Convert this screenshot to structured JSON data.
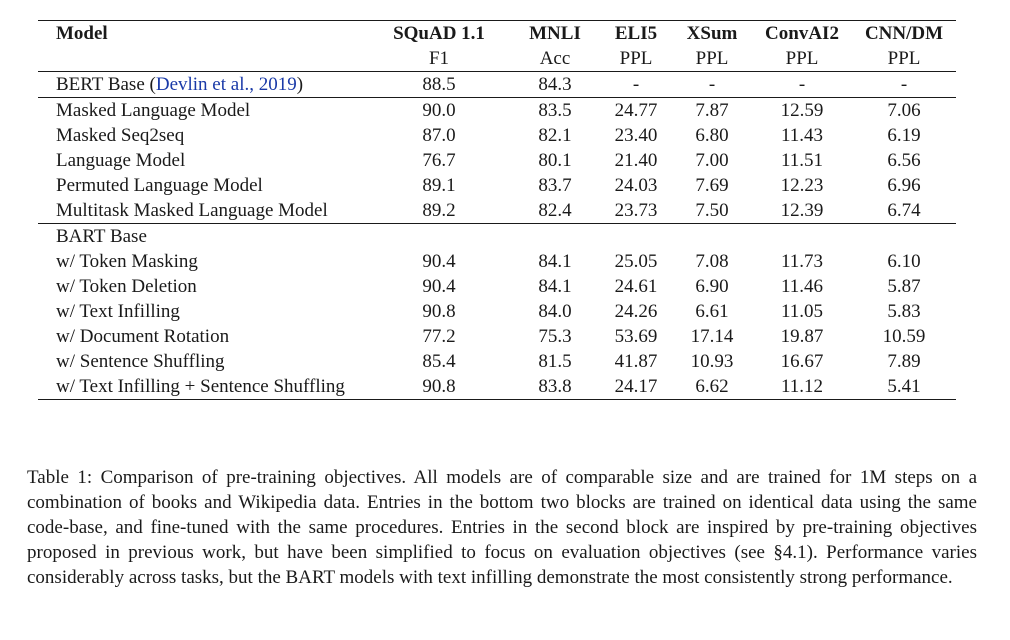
{
  "header": {
    "model_label": "Model",
    "columns": [
      {
        "name": "SQuAD 1.1",
        "metric": "F1"
      },
      {
        "name": "MNLI",
        "metric": "Acc"
      },
      {
        "name": "ELI5",
        "metric": "PPL"
      },
      {
        "name": "XSum",
        "metric": "PPL"
      },
      {
        "name": "ConvAI2",
        "metric": "PPL"
      },
      {
        "name": "CNN/DM",
        "metric": "PPL"
      }
    ]
  },
  "baseline": {
    "model": "BERT Base",
    "citation_open": " (",
    "citation": "Devlin et al., 2019",
    "citation_close": ")",
    "values": [
      "88.5",
      "84.3",
      "-",
      "-",
      "-",
      "-"
    ]
  },
  "block2": [
    {
      "model": "Masked Language Model",
      "values": [
        "90.0",
        "83.5",
        "24.77",
        "7.87",
        "12.59",
        "7.06"
      ]
    },
    {
      "model": "Masked Seq2seq",
      "values": [
        "87.0",
        "82.1",
        "23.40",
        "6.80",
        "11.43",
        "6.19"
      ]
    },
    {
      "model": "Language Model",
      "values": [
        "76.7",
        "80.1",
        "21.40",
        "7.00",
        "11.51",
        "6.56"
      ]
    },
    {
      "model": "Permuted Language Model",
      "values": [
        "89.1",
        "83.7",
        "24.03",
        "7.69",
        "12.23",
        "6.96"
      ]
    },
    {
      "model": "Multitask Masked Language Model",
      "values": [
        "89.2",
        "82.4",
        "23.73",
        "7.50",
        "12.39",
        "6.74"
      ]
    }
  ],
  "block3_title": "BART Base",
  "block3": [
    {
      "model": "w/ Token Masking",
      "values": [
        "90.4",
        "84.1",
        "25.05",
        "7.08",
        "11.73",
        "6.10"
      ]
    },
    {
      "model": "w/ Token Deletion",
      "values": [
        "90.4",
        "84.1",
        "24.61",
        "6.90",
        "11.46",
        "5.87"
      ]
    },
    {
      "model": "w/ Text Infilling",
      "values": [
        "90.8",
        "84.0",
        "24.26",
        "6.61",
        "11.05",
        "5.83"
      ]
    },
    {
      "model": "w/ Document Rotation",
      "values": [
        "77.2",
        "75.3",
        "53.69",
        "17.14",
        "19.87",
        "10.59"
      ]
    },
    {
      "model": "w/ Sentence Shuffling",
      "values": [
        "85.4",
        "81.5",
        "41.87",
        "10.93",
        "16.67",
        "7.89"
      ]
    },
    {
      "model": "w/ Text Infilling + Sentence Shuffling",
      "values": [
        "90.8",
        "83.8",
        "24.17",
        "6.62",
        "11.12",
        "5.41"
      ]
    }
  ],
  "caption": "Table 1:  Comparison of pre-training objectives. All models are of comparable size and are trained for 1M steps on a combination of books and Wikipedia data.  Entries in the bottom two blocks are trained on identical data using the same code-base, and fine-tuned with the same procedures. Entries in the second block are inspired by pre-training objectives proposed in previous work, but have been simplified to focus on evaluation objectives (see §4.1). Performance varies considerably across tasks, but the BART models with text infilling demonstrate the most consistently strong performance."
}
